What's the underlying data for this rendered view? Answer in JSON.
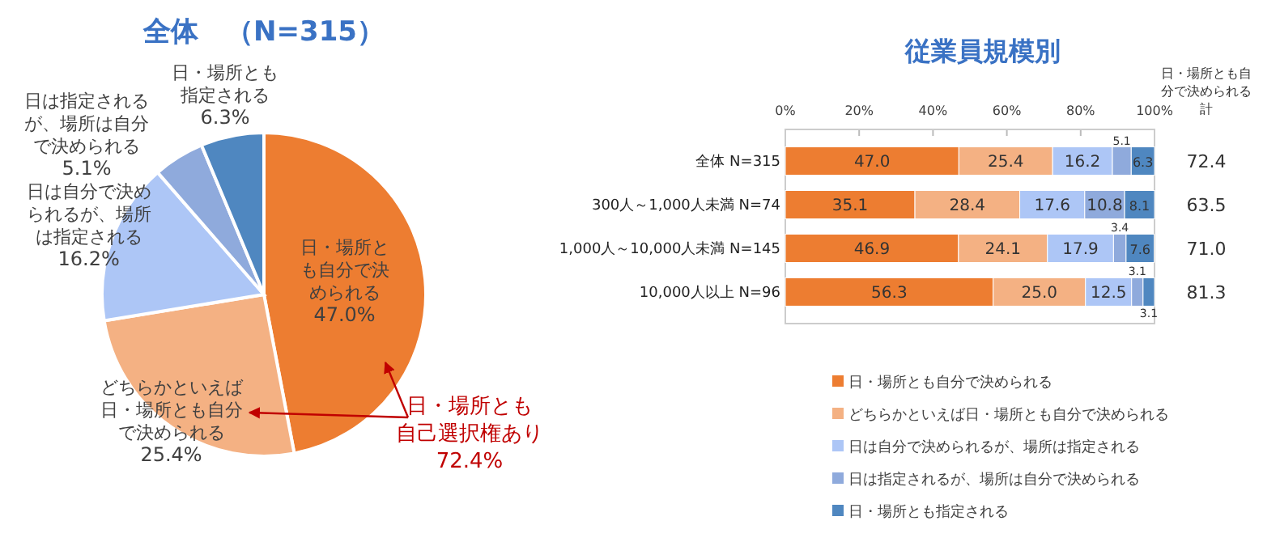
{
  "chart_data": [
    {
      "type": "pie",
      "title": "全体　（N=315）",
      "categories": [
        "日・場所とも自分で決められる",
        "どちらかといえば日・場所とも自分で決められる",
        "日は自分で決められるが、場所は指定される",
        "日は指定されるが、場所は自分で決められる",
        "日・場所とも指定される"
      ],
      "values": [
        47.0,
        25.4,
        16.2,
        5.1,
        6.3
      ],
      "value_labels": [
        "47.0%",
        "25.4%",
        "16.2%",
        "5.1%",
        "6.3%"
      ],
      "colors": [
        "#ed7d31",
        "#f4b183",
        "#adc6f6",
        "#8faadc",
        "#4f87c0"
      ],
      "annotations": [
        "日・場所とも自己選択権あり",
        "72.4%"
      ]
    },
    {
      "type": "bar",
      "orientation": "horizontal",
      "stacked": true,
      "title": "従業員規模別",
      "categories": [
        "全体 N=315",
        "300人～1,000人未満 N=74",
        "1,000人～10,000人未満 N=145",
        "10,000人以上 N=96"
      ],
      "series": [
        {
          "name": "日・場所とも自分で決められる",
          "color": "#ed7d31",
          "values": [
            47.0,
            35.1,
            46.9,
            56.3
          ],
          "value_labels": [
            "47.0",
            "35.1",
            "46.9",
            "56.3"
          ]
        },
        {
          "name": "どちらかといえば日・場所とも自分で決められる",
          "color": "#f4b183",
          "values": [
            25.4,
            28.4,
            24.1,
            25.0
          ],
          "value_labels": [
            "25.4",
            "28.4",
            "24.1",
            "25.0"
          ]
        },
        {
          "name": "日は自分で決められるが、場所は指定される",
          "color": "#adc6f6",
          "values": [
            16.2,
            17.6,
            17.9,
            12.5
          ],
          "value_labels": [
            "16.2",
            "17.6",
            "17.9",
            "12.5"
          ]
        },
        {
          "name": "日は指定されるが、場所は自分で決められる",
          "color": "#8faadc",
          "values": [
            5.1,
            10.8,
            3.4,
            3.1
          ],
          "value_labels": [
            "5.1",
            "10.8",
            "3.4",
            "3.1"
          ]
        },
        {
          "name": "日・場所とも指定される",
          "color": "#4f87c0",
          "values": [
            6.3,
            8.1,
            7.6,
            3.1
          ],
          "value_labels": [
            "6.3",
            "8.1",
            "7.6",
            "3.1"
          ]
        }
      ],
      "xlim": [
        0,
        100
      ],
      "xticks": [
        {
          "value": 0,
          "label": "0%"
        },
        {
          "value": 20,
          "label": "20%"
        },
        {
          "value": 40,
          "label": "40%"
        },
        {
          "value": 60,
          "label": "60%"
        },
        {
          "value": 80,
          "label": "80%"
        },
        {
          "value": 100,
          "label": "100%"
        }
      ],
      "legend": "bottom",
      "annotations": [
        "日・場所とも自分で決められる計",
        "72.4",
        "63.5",
        "71.0",
        "81.3"
      ]
    }
  ]
}
